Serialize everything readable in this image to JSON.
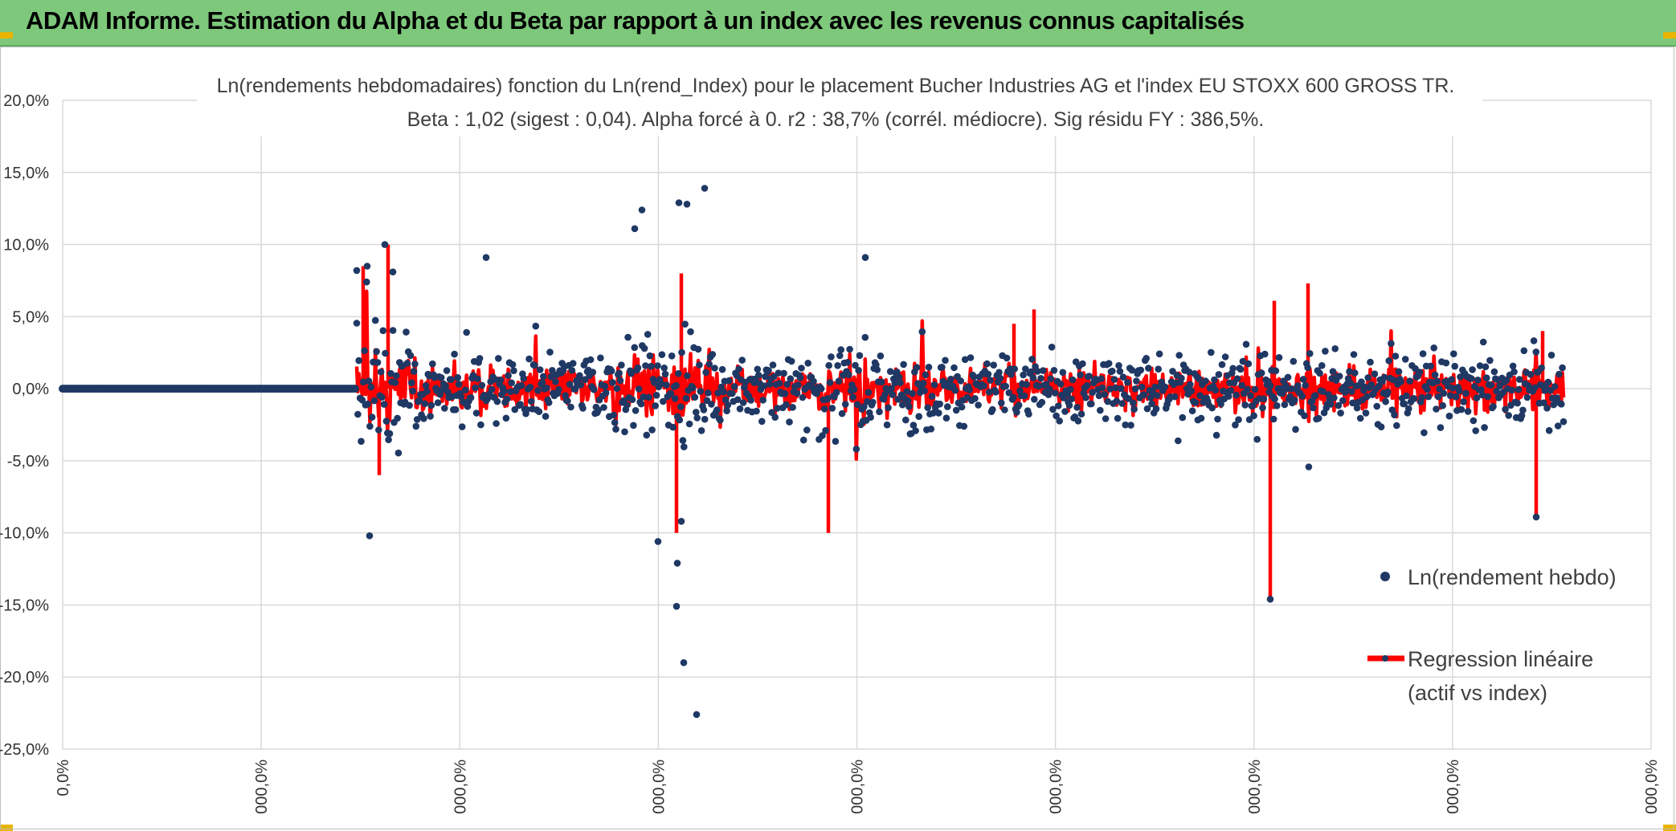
{
  "banner": {
    "title": "ADAM Informe. Estimation du Alpha et du Beta par rapport à un index avec les revenus connus capitalisés",
    "background": "#7dc87b"
  },
  "chart_data": {
    "type": "scatter",
    "title_line1": "Ln(rendements hebdomadaires) fonction du Ln(rend_Index) pour le placement Bucher Industries AG et l'index EU STOXX 600 GROSS TR.",
    "title_line2": "Beta : 1,02 (sigest : 0,04). Alpha forcé à 0. r2 : 38,7% (corrél. médiocre). Sig résidu FY : 386,5%.",
    "ylim": [
      -0.25,
      0.2
    ],
    "y_ticks": [
      "20,0%",
      "15,0%",
      "10,0%",
      "5,0%",
      "0,0%",
      "-5,0%",
      "-10,0%",
      "-15,0%",
      "-20,0%",
      "-25,0%"
    ],
    "x_ticks": [
      "0,0%",
      "000,0%",
      "000,0%",
      "000,0%",
      "000,0%",
      "000,0%",
      "000,0%",
      "000,0%",
      "000,0%"
    ],
    "grid": true,
    "legend_position": "bottom-right",
    "series": [
      {
        "name": "Ln(rendement hebdo)",
        "kind": "markers",
        "color": "#1f3864"
      },
      {
        "name": "Regression linéaire (actif vs index)",
        "kind": "line",
        "color": "#ff0000"
      }
    ],
    "legend": {
      "entry1": "Ln(rendement hebdo)",
      "entry2_line1": "Regression linéaire",
      "entry2_line2": "(actif vs index)"
    },
    "flat_segment": {
      "y": 0.0,
      "description_points": 150
    },
    "notable_points": [
      {
        "y": 0.139
      },
      {
        "y": 0.129
      },
      {
        "y": 0.128
      },
      {
        "y": 0.124
      },
      {
        "y": 0.111
      },
      {
        "y": 0.1
      },
      {
        "y": 0.091
      },
      {
        "y": 0.091
      },
      {
        "y": 0.085
      },
      {
        "y": 0.081
      },
      {
        "y": 0.082
      },
      {
        "y": -0.092
      },
      {
        "y": -0.102
      },
      {
        "y": -0.106
      },
      {
        "y": -0.121
      },
      {
        "y": -0.151
      },
      {
        "y": -0.19
      },
      {
        "y": -0.226
      },
      {
        "y": -0.146
      },
      {
        "y": -0.089
      }
    ]
  }
}
